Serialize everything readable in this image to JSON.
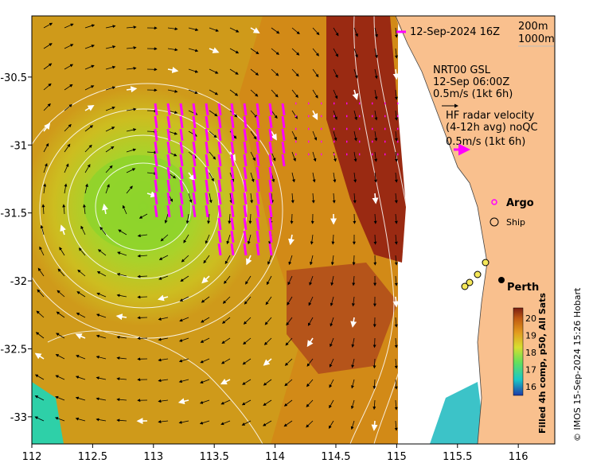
{
  "map": {
    "x_ticks": [
      "112",
      "112.5",
      "113",
      "113.5",
      "114",
      "114.5",
      "115",
      "115.5",
      "116"
    ],
    "y_ticks": [
      "-30.5",
      "-31",
      "-31.5",
      "-32",
      "-32.5",
      "-33"
    ],
    "lon_range": [
      112,
      116.3
    ],
    "lat_range": [
      -33.2,
      -30.05
    ],
    "timestamp": "12-Sep-2024 16Z",
    "bathymetry_legend": {
      "line1": "200m",
      "line2": "1000m"
    },
    "gsl_annotation": {
      "line1": "NRT00 GSL",
      "line2": "12-Sep 06:00Z",
      "line3": "0.5m/s (1kt 6h)"
    },
    "hf_annotation": {
      "line1": "HF radar velocity",
      "line2": "(4-12h avg) noQC",
      "line3": "0.5m/s (1kt 6h)"
    },
    "argo_label": "Argo",
    "ship_label": "Ship",
    "city_label": "Perth",
    "colorbar": {
      "ticks": [
        "20",
        "19",
        "18",
        "17",
        "16"
      ],
      "range": [
        15.5,
        20.6
      ],
      "title": "Filled 4h comp, p50, All Sats"
    },
    "credit": "© IMOS 15-Sep-2024 15:26 Hobart",
    "colors": {
      "land": "#f9c08e",
      "hf_vector": "#ff00ff",
      "argo": "#ff00ff"
    }
  }
}
